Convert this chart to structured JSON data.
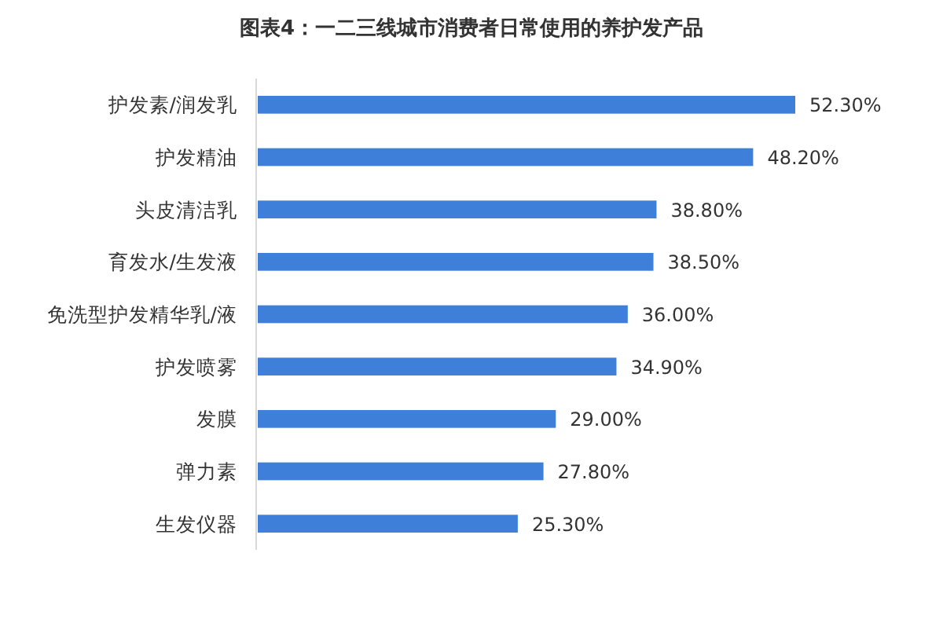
{
  "chart_data": {
    "type": "bar",
    "orientation": "horizontal",
    "title": "图表4：一二三线城市消费者日常使用的养护发产品",
    "categories": [
      "护发素/润发乳",
      "护发精油",
      "头皮清洁乳",
      "育发水/生发液",
      "免洗型护发精华乳/液",
      "护发喷雾",
      "发膜",
      "弹力素",
      "生发仪器"
    ],
    "values": [
      52.3,
      48.2,
      38.8,
      38.5,
      36.0,
      34.9,
      29.0,
      27.8,
      25.3
    ],
    "value_labels": [
      "52.30%",
      "48.20%",
      "38.80%",
      "38.50%",
      "36.00%",
      "34.90%",
      "29.00%",
      "27.80%",
      "25.30%"
    ],
    "color": "#3d7fd9"
  }
}
